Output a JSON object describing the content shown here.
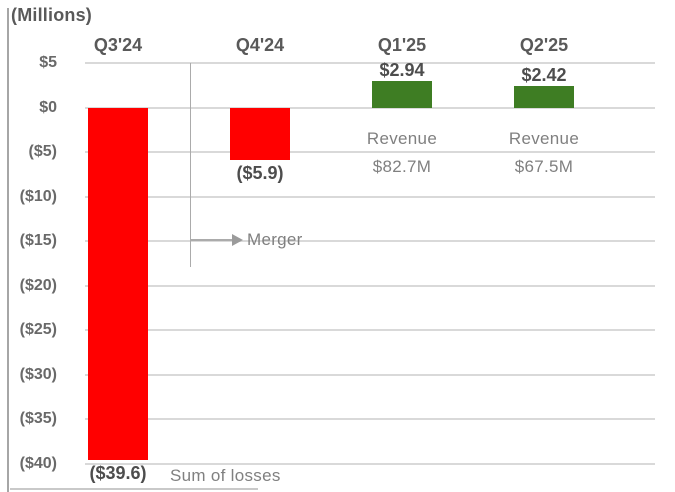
{
  "chart_data": {
    "type": "bar",
    "title": "(Millions)",
    "categories": [
      "Q3'24",
      "Q4'24",
      "Q1'25",
      "Q2'25"
    ],
    "values": [
      -39.6,
      -5.9,
      2.94,
      2.42
    ],
    "bar_labels": [
      "($39.6)",
      "($5.9)",
      "$2.94",
      "$2.42"
    ],
    "bar_colors": [
      "#FF0000",
      "#FF0000",
      "#3E7D23",
      "#3E7D23"
    ],
    "xlabel": "",
    "ylabel": "(Millions)",
    "ylim": [
      -40,
      5
    ],
    "grid": true,
    "legend_position": "none",
    "yticks": [
      {
        "value": 5,
        "label": "$5"
      },
      {
        "value": 0,
        "label": "$0"
      },
      {
        "value": -5,
        "label": "($5)"
      },
      {
        "value": -10,
        "label": "($10)"
      },
      {
        "value": -15,
        "label": "($15)"
      },
      {
        "value": -20,
        "label": "($20)"
      },
      {
        "value": -25,
        "label": "($25)"
      },
      {
        "value": -30,
        "label": "($30)"
      },
      {
        "value": -35,
        "label": "($35)"
      },
      {
        "value": -40,
        "label": "($40)"
      }
    ],
    "annotations": {
      "revenue_notes": [
        {
          "column_index": 2,
          "lines": [
            "Revenue",
            "$82.7M"
          ]
        },
        {
          "column_index": 3,
          "lines": [
            "Revenue",
            "$67.5M"
          ]
        }
      ],
      "merger_label": "Merger",
      "sum_of_losses_label": "Sum of losses"
    }
  },
  "colors": {
    "loss_bar": "#FF0000",
    "profit_bar": "#3E7D23",
    "gridline": "#D9D9D9",
    "annotation_line": "#ABABAB",
    "dark_text": "#595959",
    "gray_text": "#808080"
  }
}
